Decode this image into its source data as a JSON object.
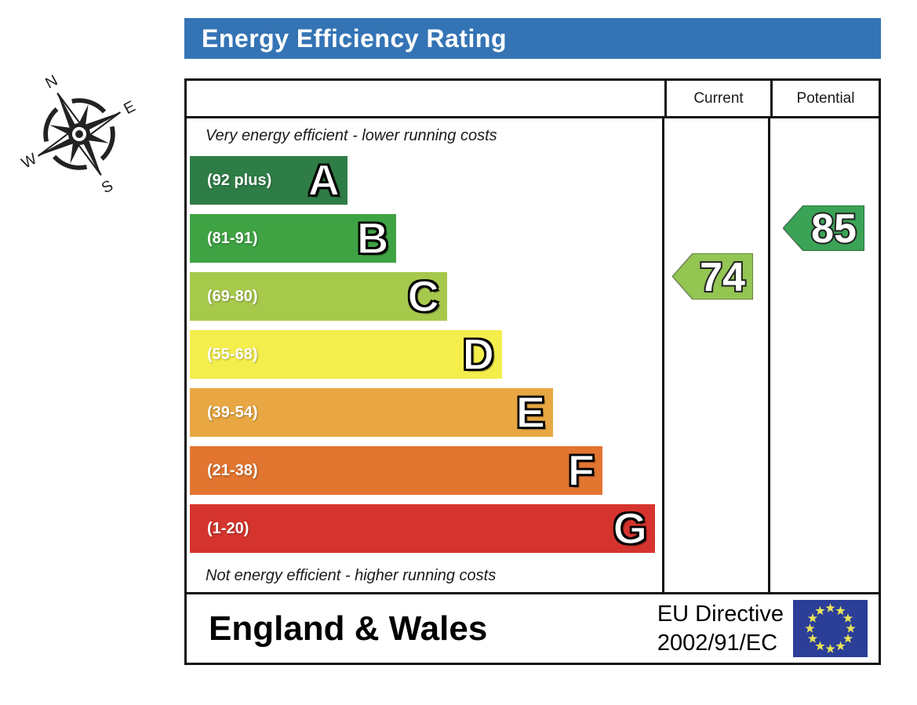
{
  "title": "Energy Efficiency Rating",
  "compass": {
    "n": "N",
    "e": "E",
    "s": "S",
    "w": "W"
  },
  "table": {
    "current_header": "Current",
    "potential_header": "Potential"
  },
  "chart_data": {
    "type": "bar",
    "title": "Energy Efficiency Rating",
    "top_caption": "Very energy efficient - lower running costs",
    "bottom_caption": "Not energy efficient - higher running costs",
    "bands": [
      {
        "letter": "A",
        "range": "(92 plus)",
        "min": 92,
        "max": 100,
        "color": "#2f7d46",
        "width_pct": 33.9
      },
      {
        "letter": "B",
        "range": "(81-91)",
        "min": 81,
        "max": 91,
        "color": "#3fa344",
        "width_pct": 44.4
      },
      {
        "letter": "C",
        "range": "(69-80)",
        "min": 69,
        "max": 80,
        "color": "#a6c94c",
        "width_pct": 55.3
      },
      {
        "letter": "D",
        "range": "(55-68)",
        "min": 55,
        "max": 68,
        "color": "#f4ee4d",
        "width_pct": 67.1
      },
      {
        "letter": "E",
        "range": "(39-54)",
        "min": 39,
        "max": 54,
        "color": "#e8a742",
        "width_pct": 78.1
      },
      {
        "letter": "F",
        "range": "(21-38)",
        "min": 21,
        "max": 38,
        "color": "#e2752f",
        "width_pct": 88.7
      },
      {
        "letter": "G",
        "range": "(1-20)",
        "min": 1,
        "max": 20,
        "color": "#d5342e",
        "width_pct": 100
      }
    ],
    "current": {
      "value": 74,
      "band": "C",
      "color": "#93c553"
    },
    "potential": {
      "value": 85,
      "band": "B",
      "color": "#3ba356"
    }
  },
  "footer": {
    "region": "England & Wales",
    "directive_line1": "EU Directive",
    "directive_line2": "2002/91/EC",
    "eu_flag": {
      "blue": "#2b3e98",
      "star": "#e8e35a"
    }
  },
  "colors": {
    "header_blue": "#3474b5",
    "border": "#111111"
  }
}
